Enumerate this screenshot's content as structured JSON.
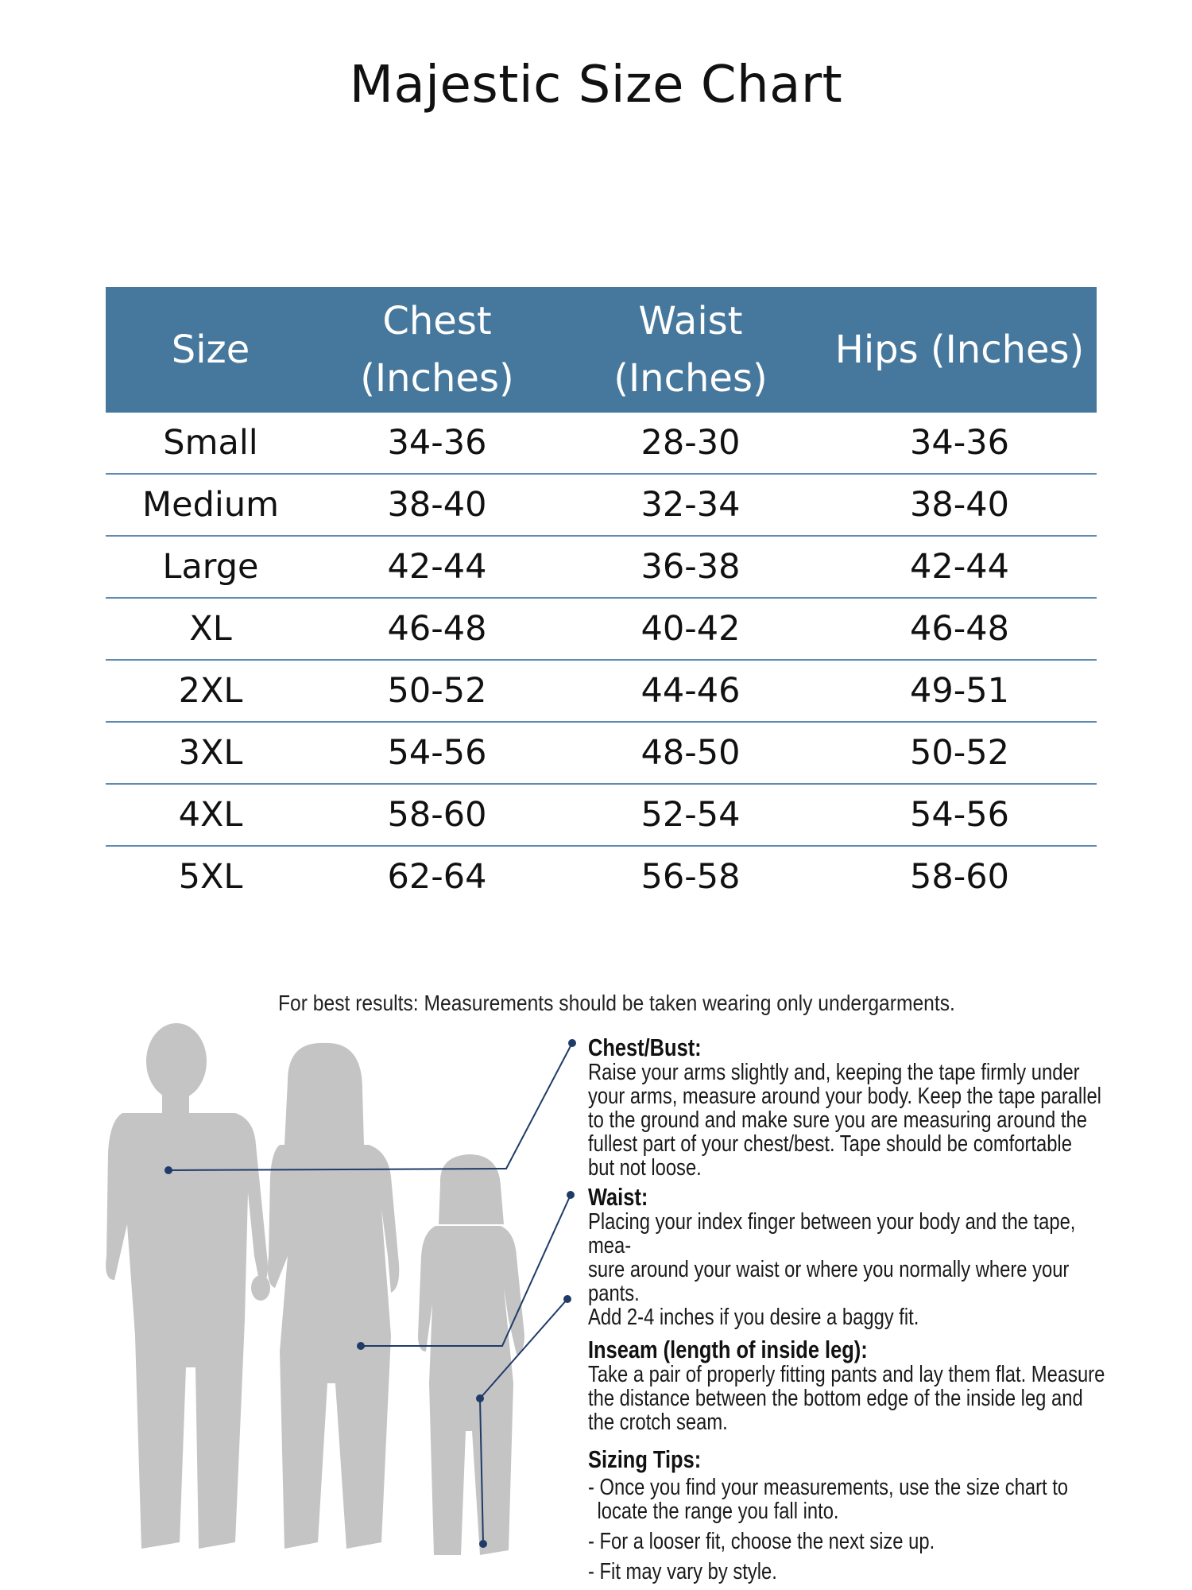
{
  "title": "Majestic Size Chart",
  "colors": {
    "header_bg": "#46789d",
    "row_divider": "#5f8bb0",
    "silhouette": "#c4c4c4",
    "marker": "#1f3b68"
  },
  "table": {
    "headers": [
      {
        "line1": "Size",
        "line2": ""
      },
      {
        "line1": "Chest",
        "line2": "(Inches)"
      },
      {
        "line1": "Waist",
        "line2": "(Inches)"
      },
      {
        "line1": "Hips (Inches)",
        "line2": ""
      }
    ],
    "rows": [
      [
        "Small",
        "34-36",
        "28-30",
        "34-36"
      ],
      [
        "Medium",
        "38-40",
        "32-34",
        "38-40"
      ],
      [
        "Large",
        "42-44",
        "36-38",
        "42-44"
      ],
      [
        "XL",
        "46-48",
        "40-42",
        "46-48"
      ],
      [
        "2XL",
        "50-52",
        "44-46",
        "49-51"
      ],
      [
        "3XL",
        "54-56",
        "48-50",
        "50-52"
      ],
      [
        "4XL",
        "58-60",
        "52-54",
        "54-56"
      ],
      [
        "5XL",
        "62-64",
        "56-58",
        "58-60"
      ]
    ]
  },
  "best_results": "For best results: Measurements should be taken wearing only undergarments.",
  "figure": {
    "icon": "family-silhouette-icon"
  },
  "instructions": {
    "chest": {
      "heading": "Chest/Bust:",
      "lines": [
        "Raise your arms slightly and, keeping the tape firmly under",
        "your arms, measure around your body. Keep the tape parallel",
        "to the ground and make sure you are measuring around the",
        "fullest part of your chest/best. Tape should be comfortable",
        "but not loose."
      ]
    },
    "waist": {
      "heading": "Waist:",
      "lines": [
        "Placing your index finger between your body and the tape, mea-",
        "sure around your waist or where you normally where your pants.",
        "Add 2-4 inches if you desire a baggy fit."
      ]
    },
    "inseam": {
      "heading": "Inseam (length of inside leg):",
      "lines": [
        "Take a pair of properly fitting pants and lay them flat. Measure",
        "the distance between the bottom edge of the inside leg and",
        "the crotch seam."
      ]
    },
    "tips": {
      "heading": "Sizing Tips:",
      "items": [
        "- Once you find your measurements, use the size chart to locate the range you fall into.",
        "- For a looser fit, choose the next size up.",
        "- Fit may vary by style."
      ]
    }
  }
}
